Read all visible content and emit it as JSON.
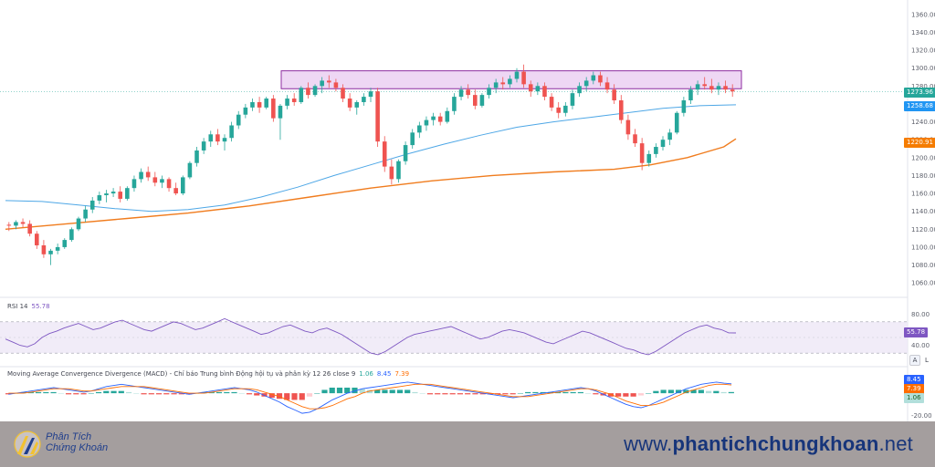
{
  "colors": {
    "up": "#26a69a",
    "down": "#ef5350",
    "sma_short": "#4ea7e6",
    "sma_long": "#f07c1e",
    "resistance_fill": "#e7c6f0",
    "resistance_stroke": "#8d2ea0",
    "rsi_line": "#7e57c2",
    "rsi_band": "#ede7f6",
    "macd_line": "#2962ff",
    "signal_line": "#ff6d00",
    "footer_bg": "#a49e9e",
    "footer_text": "#17357a"
  },
  "price_axis": {
    "ticks": [
      "1360.00",
      "1340.00",
      "1320.00",
      "1300.00",
      "1280.00",
      "1260.00",
      "1240.00",
      "1220.00",
      "1200.00",
      "1180.00",
      "1160.00",
      "1140.00",
      "1120.00",
      "1100.00",
      "1080.00",
      "1060.00"
    ],
    "last_price": "1273.96",
    "sma_short_value": "1258.68",
    "sma_long_value": "1220.91"
  },
  "rsi": {
    "title": "RSI 14",
    "value": "55.78",
    "ticks": [
      "80.00",
      "40.00"
    ],
    "buttons": [
      "A",
      "L"
    ]
  },
  "macd": {
    "title": "Moving Average Convergence Divergence (MACD) - Chỉ báo Trung bình Động hội tụ và phân kỳ 12 26 close 9",
    "histogram_value": "1.06",
    "macd_value": "8.45",
    "signal_value": "7.39",
    "axis_tick": "-20.00"
  },
  "footer": {
    "brand_line1": "Phân Tích",
    "brand_line2": "Chứng Khoán",
    "site_prefix": "www.",
    "site_bold": "phantichchungkhoan",
    "site_suffix": ".net"
  },
  "chart_data": {
    "type": "candlestick",
    "ylim": [
      1050,
      1370
    ],
    "candles": [
      [
        1125,
        1128,
        1118,
        1124
      ],
      [
        1124,
        1130,
        1120,
        1128
      ],
      [
        1128,
        1132,
        1122,
        1126
      ],
      [
        1126,
        1130,
        1112,
        1115
      ],
      [
        1115,
        1118,
        1098,
        1102
      ],
      [
        1102,
        1108,
        1088,
        1092
      ],
      [
        1092,
        1098,
        1080,
        1096
      ],
      [
        1096,
        1104,
        1092,
        1100
      ],
      [
        1100,
        1110,
        1098,
        1108
      ],
      [
        1108,
        1122,
        1106,
        1120
      ],
      [
        1120,
        1134,
        1118,
        1132
      ],
      [
        1132,
        1146,
        1128,
        1142
      ],
      [
        1142,
        1156,
        1138,
        1152
      ],
      [
        1152,
        1162,
        1148,
        1158
      ],
      [
        1158,
        1164,
        1150,
        1160
      ],
      [
        1160,
        1166,
        1156,
        1162
      ],
      [
        1162,
        1168,
        1150,
        1154
      ],
      [
        1154,
        1168,
        1152,
        1166
      ],
      [
        1166,
        1180,
        1162,
        1176
      ],
      [
        1176,
        1188,
        1172,
        1184
      ],
      [
        1184,
        1190,
        1174,
        1178
      ],
      [
        1178,
        1184,
        1168,
        1172
      ],
      [
        1172,
        1180,
        1166,
        1176
      ],
      [
        1176,
        1178,
        1162,
        1166
      ],
      [
        1166,
        1172,
        1158,
        1160
      ],
      [
        1160,
        1180,
        1158,
        1178
      ],
      [
        1178,
        1196,
        1176,
        1194
      ],
      [
        1194,
        1212,
        1190,
        1208
      ],
      [
        1208,
        1222,
        1204,
        1218
      ],
      [
        1218,
        1230,
        1212,
        1226
      ],
      [
        1226,
        1232,
        1214,
        1218
      ],
      [
        1218,
        1226,
        1208,
        1222
      ],
      [
        1222,
        1240,
        1218,
        1236
      ],
      [
        1236,
        1252,
        1232,
        1248
      ],
      [
        1248,
        1260,
        1244,
        1256
      ],
      [
        1256,
        1266,
        1252,
        1262
      ],
      [
        1262,
        1268,
        1250,
        1256
      ],
      [
        1256,
        1268,
        1254,
        1266
      ],
      [
        1266,
        1270,
        1240,
        1244
      ],
      [
        1244,
        1260,
        1220,
        1258
      ],
      [
        1258,
        1270,
        1254,
        1266
      ],
      [
        1266,
        1272,
        1258,
        1262
      ],
      [
        1262,
        1280,
        1260,
        1278
      ],
      [
        1278,
        1284,
        1266,
        1270
      ],
      [
        1270,
        1282,
        1268,
        1280
      ],
      [
        1280,
        1290,
        1272,
        1286
      ],
      [
        1286,
        1292,
        1278,
        1284
      ],
      [
        1284,
        1288,
        1274,
        1278
      ],
      [
        1278,
        1282,
        1262,
        1266
      ],
      [
        1266,
        1272,
        1252,
        1256
      ],
      [
        1256,
        1264,
        1248,
        1262
      ],
      [
        1262,
        1272,
        1258,
        1268
      ],
      [
        1268,
        1278,
        1262,
        1274
      ],
      [
        1274,
        1278,
        1212,
        1218
      ],
      [
        1218,
        1224,
        1184,
        1190
      ],
      [
        1190,
        1198,
        1170,
        1176
      ],
      [
        1176,
        1198,
        1172,
        1196
      ],
      [
        1196,
        1218,
        1192,
        1214
      ],
      [
        1214,
        1232,
        1210,
        1228
      ],
      [
        1228,
        1240,
        1222,
        1236
      ],
      [
        1236,
        1246,
        1230,
        1242
      ],
      [
        1242,
        1250,
        1236,
        1246
      ],
      [
        1246,
        1250,
        1236,
        1240
      ],
      [
        1240,
        1256,
        1238,
        1252
      ],
      [
        1252,
        1272,
        1248,
        1268
      ],
      [
        1268,
        1280,
        1264,
        1276
      ],
      [
        1276,
        1282,
        1266,
        1270
      ],
      [
        1270,
        1276,
        1254,
        1258
      ],
      [
        1258,
        1272,
        1256,
        1270
      ],
      [
        1270,
        1282,
        1266,
        1278
      ],
      [
        1278,
        1288,
        1272,
        1284
      ],
      [
        1284,
        1290,
        1276,
        1282
      ],
      [
        1282,
        1292,
        1278,
        1288
      ],
      [
        1288,
        1300,
        1284,
        1296
      ],
      [
        1296,
        1304,
        1278,
        1282
      ],
      [
        1282,
        1286,
        1268,
        1274
      ],
      [
        1274,
        1284,
        1270,
        1280
      ],
      [
        1280,
        1284,
        1264,
        1268
      ],
      [
        1268,
        1272,
        1252,
        1256
      ],
      [
        1256,
        1262,
        1244,
        1250
      ],
      [
        1250,
        1262,
        1246,
        1258
      ],
      [
        1258,
        1276,
        1254,
        1272
      ],
      [
        1272,
        1284,
        1268,
        1280
      ],
      [
        1280,
        1290,
        1274,
        1286
      ],
      [
        1286,
        1296,
        1282,
        1292
      ],
      [
        1292,
        1296,
        1280,
        1284
      ],
      [
        1284,
        1290,
        1272,
        1276
      ],
      [
        1276,
        1282,
        1260,
        1264
      ],
      [
        1264,
        1270,
        1238,
        1242
      ],
      [
        1242,
        1248,
        1220,
        1226
      ],
      [
        1226,
        1232,
        1212,
        1216
      ],
      [
        1216,
        1222,
        1186,
        1194
      ],
      [
        1194,
        1208,
        1190,
        1204
      ],
      [
        1204,
        1216,
        1200,
        1212
      ],
      [
        1212,
        1224,
        1208,
        1220
      ],
      [
        1220,
        1232,
        1214,
        1228
      ],
      [
        1228,
        1252,
        1226,
        1250
      ],
      [
        1250,
        1268,
        1246,
        1264
      ],
      [
        1264,
        1280,
        1260,
        1276
      ],
      [
        1276,
        1286,
        1270,
        1282
      ],
      [
        1282,
        1290,
        1276,
        1280
      ],
      [
        1280,
        1288,
        1272,
        1276
      ],
      [
        1276,
        1284,
        1270,
        1280
      ],
      [
        1280,
        1286,
        1272,
        1276
      ],
      [
        1276,
        1282,
        1268,
        1274
      ]
    ],
    "sma_short": [
      [
        0,
        1152
      ],
      [
        6,
        1151
      ],
      [
        12,
        1147
      ],
      [
        18,
        1143
      ],
      [
        24,
        1140
      ],
      [
        30,
        1142
      ],
      [
        36,
        1147
      ],
      [
        42,
        1156
      ],
      [
        48,
        1167
      ],
      [
        54,
        1180
      ],
      [
        60,
        1192
      ],
      [
        66,
        1204
      ],
      [
        72,
        1215
      ],
      [
        78,
        1225
      ],
      [
        84,
        1234
      ],
      [
        90,
        1240
      ],
      [
        96,
        1245
      ],
      [
        102,
        1250
      ],
      [
        108,
        1255
      ],
      [
        114,
        1258
      ],
      [
        120,
        1259
      ]
    ],
    "sma_long": [
      [
        0,
        1120
      ],
      [
        10,
        1126
      ],
      [
        20,
        1132
      ],
      [
        30,
        1138
      ],
      [
        40,
        1146
      ],
      [
        50,
        1156
      ],
      [
        60,
        1166
      ],
      [
        70,
        1174
      ],
      [
        80,
        1180
      ],
      [
        90,
        1184
      ],
      [
        100,
        1187
      ],
      [
        106,
        1192
      ],
      [
        112,
        1200
      ],
      [
        118,
        1212
      ],
      [
        120,
        1221
      ]
    ],
    "resistance_zone": [
      1277,
      1297
    ],
    "rsi": {
      "ylim": [
        15,
        85
      ],
      "bands": [
        70,
        30
      ],
      "values": [
        48,
        44,
        40,
        38,
        42,
        50,
        55,
        58,
        62,
        65,
        68,
        64,
        60,
        62,
        66,
        70,
        72,
        68,
        64,
        60,
        58,
        62,
        66,
        70,
        68,
        64,
        60,
        62,
        66,
        70,
        74,
        70,
        66,
        62,
        58,
        54,
        56,
        60,
        64,
        66,
        62,
        58,
        56,
        60,
        62,
        58,
        54,
        48,
        42,
        36,
        30,
        28,
        32,
        38,
        44,
        50,
        54,
        56,
        58,
        60,
        62,
        64,
        60,
        56,
        52,
        48,
        50,
        54,
        58,
        60,
        58,
        56,
        52,
        48,
        44,
        42,
        46,
        50,
        54,
        58,
        56,
        52,
        48,
        44,
        40,
        36,
        34,
        30,
        28,
        32,
        38,
        44,
        50,
        56,
        60,
        64,
        66,
        62,
        60,
        56,
        55.78
      ]
    },
    "macd": {
      "ylim": [
        -22,
        14
      ],
      "macd_line": [
        -1,
        0,
        1,
        2,
        3,
        4,
        5,
        4,
        3,
        2,
        1,
        2,
        4,
        6,
        7,
        8,
        7,
        6,
        5,
        4,
        3,
        2,
        1,
        0,
        -1,
        0,
        1,
        2,
        3,
        4,
        5,
        4,
        3,
        1,
        -2,
        -5,
        -8,
        -12,
        -15,
        -18,
        -17,
        -14,
        -10,
        -6,
        -3,
        0,
        2,
        4,
        5,
        6,
        7,
        8,
        9,
        10,
        9,
        8,
        7,
        6,
        5,
        4,
        3,
        2,
        1,
        0,
        -1,
        -2,
        -3,
        -4,
        -3,
        -2,
        -1,
        0,
        1,
        2,
        3,
        4,
        5,
        4,
        2,
        -1,
        -4,
        -7,
        -10,
        -12,
        -13,
        -11,
        -8,
        -5,
        -2,
        1,
        4,
        6,
        8,
        9,
        10,
        9,
        8.45
      ],
      "signal_line": [
        0,
        0,
        0,
        1,
        2,
        3,
        4,
        4,
        4,
        3,
        2,
        2,
        3,
        4,
        5,
        6,
        6,
        6,
        6,
        5,
        4,
        3,
        2,
        1,
        0,
        0,
        0,
        1,
        2,
        3,
        4,
        4,
        4,
        3,
        1,
        -1,
        -3,
        -6,
        -9,
        -12,
        -14,
        -14,
        -13,
        -11,
        -8,
        -5,
        -3,
        0,
        2,
        3,
        4,
        5,
        6,
        7,
        8,
        8,
        8,
        7,
        6,
        5,
        4,
        3,
        2,
        1,
        0,
        -1,
        -2,
        -3,
        -3,
        -3,
        -2,
        -1,
        0,
        1,
        2,
        3,
        4,
        4,
        3,
        1,
        -1,
        -4,
        -7,
        -9,
        -11,
        -11,
        -10,
        -8,
        -5,
        -2,
        1,
        3,
        5,
        7,
        8,
        8,
        7.39
      ]
    }
  }
}
